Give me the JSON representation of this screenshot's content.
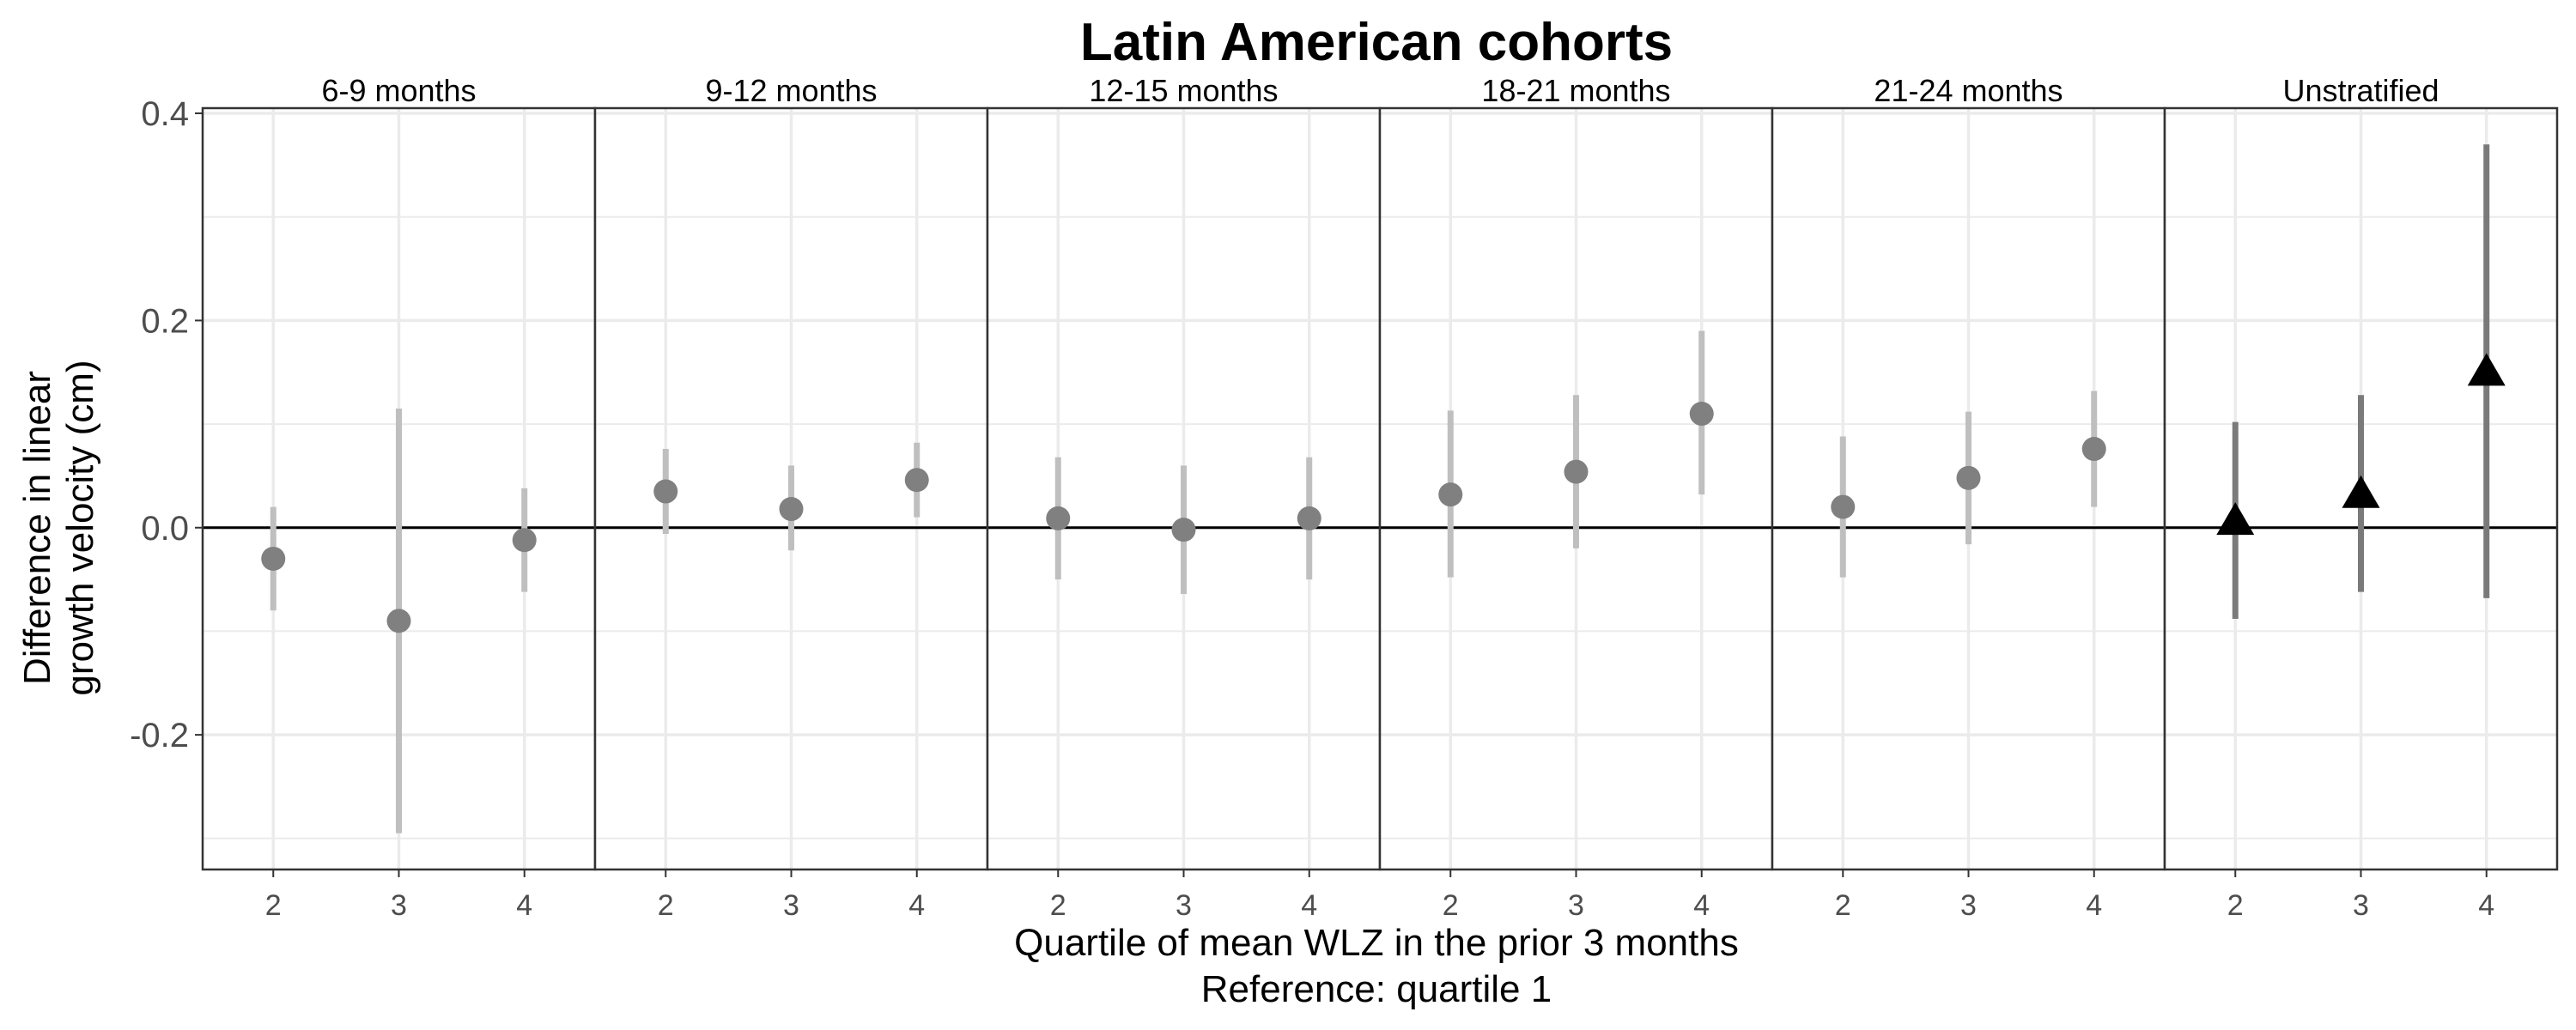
{
  "chart_data": {
    "type": "scatter",
    "title": "Latin American cohorts",
    "xlabel": [
      "Quartile of mean WLZ in the prior 3 months",
      "Reference: quartile 1"
    ],
    "ylabel": [
      "Difference in linear",
      "growth velocity (cm)"
    ],
    "ylim": [
      -0.33,
      0.405
    ],
    "yticks": [
      0.4,
      0.2,
      0.0,
      -0.2
    ],
    "ytick_labels": [
      "0.4",
      "0.2",
      "0.0",
      "-0.2"
    ],
    "reference_line": 0,
    "grid": true,
    "categories": [
      "2",
      "3",
      "4"
    ],
    "colors": {
      "stratified_point": "#808080",
      "stratified_ci": "#bfbfbf",
      "unstratified_point": "#000000",
      "unstratified_ci": "#7a7a7a",
      "grid": "#ebebeb",
      "border": "#333333"
    },
    "panels": [
      {
        "label": "6-9 months",
        "marker": "circle",
        "points": [
          {
            "x": "2",
            "y": -0.03,
            "lo": -0.08,
            "hi": 0.02
          },
          {
            "x": "3",
            "y": -0.09,
            "lo": -0.295,
            "hi": 0.115
          },
          {
            "x": "4",
            "y": -0.012,
            "lo": -0.062,
            "hi": 0.038
          }
        ]
      },
      {
        "label": "9-12 months",
        "marker": "circle",
        "points": [
          {
            "x": "2",
            "y": 0.035,
            "lo": -0.006,
            "hi": 0.076
          },
          {
            "x": "3",
            "y": 0.018,
            "lo": -0.022,
            "hi": 0.06
          },
          {
            "x": "4",
            "y": 0.046,
            "lo": 0.01,
            "hi": 0.082
          }
        ]
      },
      {
        "label": "12-15 months",
        "marker": "circle",
        "points": [
          {
            "x": "2",
            "y": 0.009,
            "lo": -0.05,
            "hi": 0.068
          },
          {
            "x": "3",
            "y": -0.002,
            "lo": -0.064,
            "hi": 0.06
          },
          {
            "x": "4",
            "y": 0.009,
            "lo": -0.05,
            "hi": 0.068
          }
        ]
      },
      {
        "label": "18-21 months",
        "marker": "circle",
        "points": [
          {
            "x": "2",
            "y": 0.032,
            "lo": -0.048,
            "hi": 0.113
          },
          {
            "x": "3",
            "y": 0.054,
            "lo": -0.02,
            "hi": 0.128
          },
          {
            "x": "4",
            "y": 0.11,
            "lo": 0.032,
            "hi": 0.19
          }
        ]
      },
      {
        "label": "21-24 months",
        "marker": "circle",
        "points": [
          {
            "x": "2",
            "y": 0.02,
            "lo": -0.048,
            "hi": 0.088
          },
          {
            "x": "3",
            "y": 0.048,
            "lo": -0.016,
            "hi": 0.112
          },
          {
            "x": "4",
            "y": 0.076,
            "lo": 0.02,
            "hi": 0.132
          }
        ]
      },
      {
        "label": "Unstratified",
        "marker": "triangle",
        "points": [
          {
            "x": "2",
            "y": 0.008,
            "lo": -0.088,
            "hi": 0.102
          },
          {
            "x": "3",
            "y": 0.034,
            "lo": -0.062,
            "hi": 0.128
          },
          {
            "x": "4",
            "y": 0.152,
            "lo": -0.068,
            "hi": 0.37
          }
        ]
      }
    ]
  }
}
